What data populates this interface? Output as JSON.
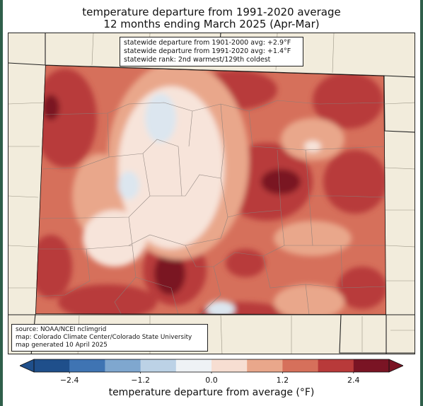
{
  "title": {
    "line1": "temperature departure from 1991-2020 average",
    "line2": "12 months ending March 2025 (Apr-Mar)"
  },
  "stats": {
    "line1": "statewide departure from 1901-2000 avg: +2.9°F",
    "line2": "statewide departure from 1991-2020 avg: +1.4°F",
    "line3": "statewide rank: 2nd warmest/129th coldest"
  },
  "source": {
    "line1": "source: NOAA/NCEI nclimgrid",
    "line2": "map: Colorado Climate Center/Colorado State University",
    "line3": "map generated 10 April 2025"
  },
  "colorbar": {
    "label": "temperature departure from average (°F)",
    "ticks": [
      "−2.4",
      "−1.2",
      "0.0",
      "1.2",
      "2.4"
    ],
    "tick_values": [
      -2.4,
      -1.2,
      0.0,
      1.2,
      2.4
    ],
    "range": [
      -3.0,
      3.0
    ],
    "colors": [
      "#1f4f8b",
      "#3f74b3",
      "#7fa7cf",
      "#bcd2e6",
      "#eef2f5",
      "#f7ded2",
      "#e9a78b",
      "#d6705b",
      "#b83a3a",
      "#7a1424"
    ]
  },
  "palette": {
    "outside": "#f2ecdc",
    "neutral": "#f7e4da",
    "light_warm": "#e9a78b",
    "warm": "#d6705b",
    "hot": "#b83a3a",
    "hottest": "#7a1424",
    "light_cool": "#dce6ef"
  }
}
